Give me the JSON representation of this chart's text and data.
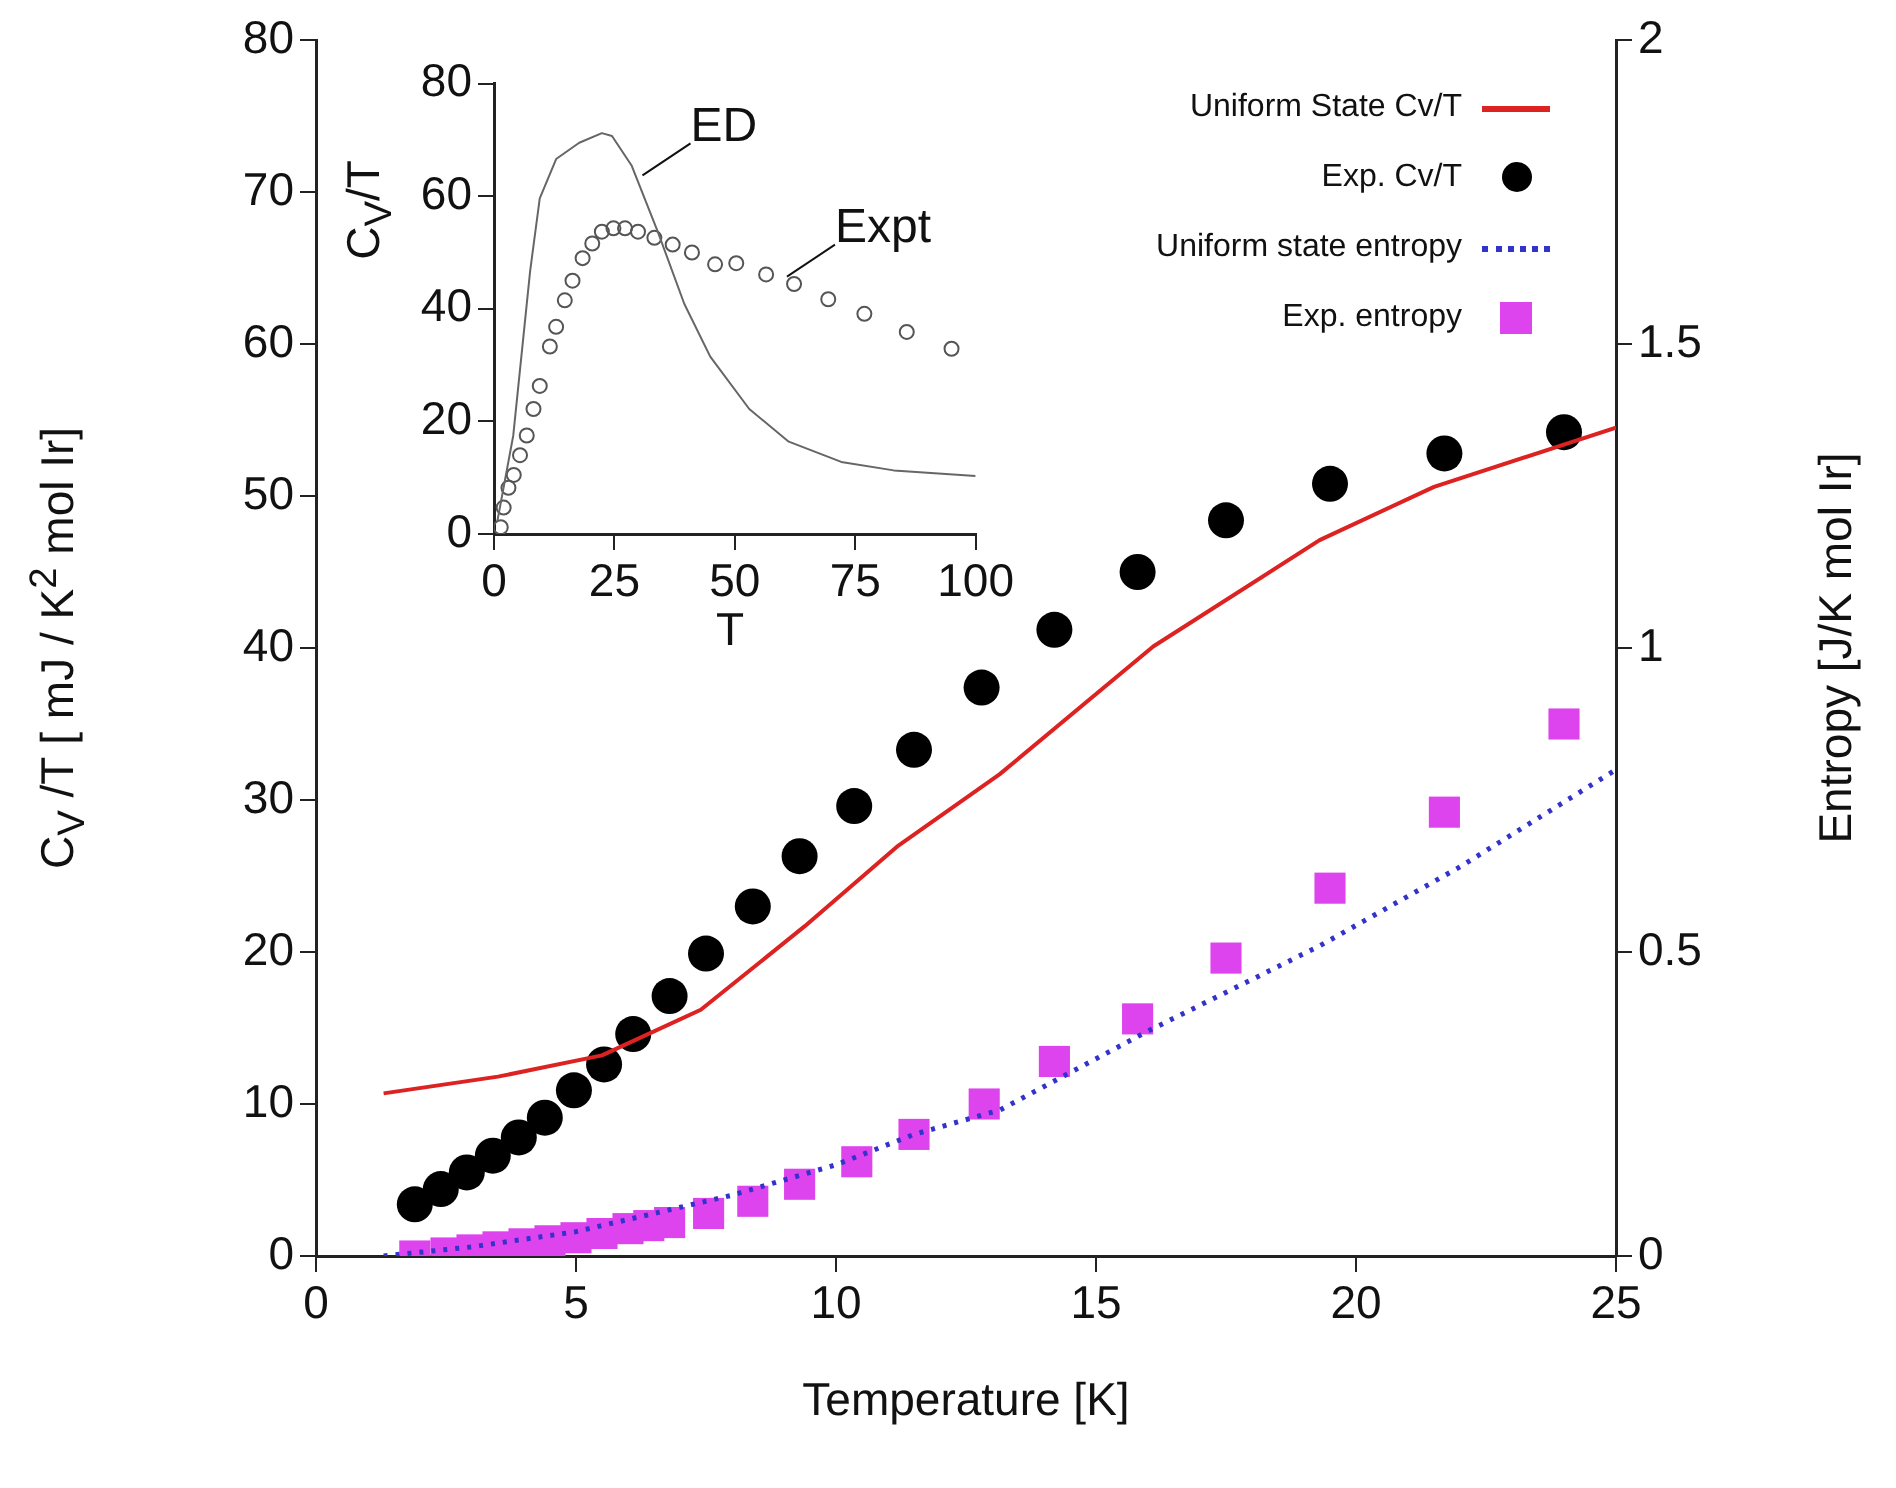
{
  "chart_data": [
    {
      "type": "line",
      "xlabel": "Temperature [K]",
      "ylabel": "C$_{V}$ /T [ mJ /  K$^{2}$ mol Ir]",
      "y2label": "Entropy [J/K mol Ir]",
      "xlim": [
        0,
        25
      ],
      "xticks": [
        0,
        5,
        10,
        15,
        20,
        25
      ],
      "ylim": [
        0,
        80
      ],
      "yticks": [
        0,
        10,
        20,
        30,
        40,
        50,
        60,
        70,
        80
      ],
      "y2lim": [
        0,
        2
      ],
      "y2ticks": [
        0,
        0.5,
        1,
        1.5,
        2
      ],
      "legend": "top right",
      "series": [
        {
          "name": "Uniform State Cv/T",
          "color": "#dd2222",
          "marker": "none",
          "line_style": "solid",
          "x": [
            1.3,
            3.5,
            5.5,
            7.4,
            9.4,
            11.2,
            13.15,
            16.1,
            19.3,
            21.5,
            25
          ],
          "values": [
            10.7,
            11.8,
            13.2,
            16.2,
            21.7,
            27,
            31.7,
            40.1,
            47.1,
            50.6,
            54.5
          ]
        },
        {
          "name": "Exp. Cv/T",
          "type": "scatter",
          "color": "#000000",
          "marker": "circle",
          "x": [
            1.9,
            2.4,
            2.9,
            3.4,
            3.9,
            4.4,
            4.96,
            5.54,
            6.1,
            6.8,
            7.5,
            8.4,
            9.3,
            10.35,
            11.5,
            12.8,
            14.2,
            15.8,
            17.5,
            19.5,
            21.7,
            24.0
          ],
          "values": [
            3.4,
            4.4,
            5.5,
            6.6,
            7.8,
            9.1,
            10.9,
            12.6,
            14.6,
            17.1,
            19.9,
            23.0,
            26.3,
            29.6,
            33.3,
            37.4,
            41.2,
            45.0,
            48.4,
            50.8,
            52.8,
            54.2
          ]
        },
        {
          "name": "Uniform state entropy",
          "axis": "y2",
          "color": "#3333cc",
          "marker": "none",
          "line_style": "dotted",
          "x": [
            1.3,
            3,
            5,
            8,
            10,
            11.5,
            13.15,
            16,
            19.3,
            22,
            25
          ],
          "values": [
            0,
            0.015,
            0.04,
            0.1,
            0.15,
            0.2,
            0.24,
            0.37,
            0.51,
            0.64,
            0.8
          ]
        },
        {
          "name": "Exp. entropy",
          "type": "scatter",
          "axis": "y2",
          "color": "#dd44ee",
          "marker": "square",
          "x": [
            1.9,
            2.5,
            3,
            3.5,
            4,
            4.5,
            5,
            5.5,
            6,
            6.4,
            6.8,
            7.55,
            8.4,
            9.3,
            10.4,
            11.5,
            12.85,
            14.2,
            15.8,
            17.5,
            19.5,
            21.7,
            24.0
          ],
          "values": [
            0,
            0.005,
            0.01,
            0.015,
            0.02,
            0.025,
            0.03,
            0.037,
            0.045,
            0.05,
            0.055,
            0.07,
            0.09,
            0.118,
            0.155,
            0.2,
            0.25,
            0.32,
            0.39,
            0.49,
            0.605,
            0.73,
            0.875
          ]
        }
      ]
    },
    {
      "type": "line",
      "xlabel": "T",
      "ylabel": "C$_{V}$/T",
      "xlim": [
        0,
        100
      ],
      "xticks": [
        0,
        25,
        50,
        75,
        100
      ],
      "ylim": [
        0,
        80
      ],
      "yticks": [
        0,
        20,
        40,
        60,
        80
      ],
      "annotations": [
        {
          "text": "ED",
          "x": 30,
          "y": 63
        },
        {
          "text": "Expt",
          "x": 60,
          "y": 45
        }
      ],
      "series": [
        {
          "color": "#666666",
          "marker": "none",
          "line_style": "solid",
          "x": [
            0.7,
            4,
            7.5,
            9.5,
            12.9,
            17.7,
            22.4,
            24.5,
            28.6,
            34,
            39.5,
            44.9,
            53,
            61.2,
            72.1,
            83,
            100
          ],
          "values": [
            2.3,
            17.5,
            46.7,
            59.6,
            66.6,
            69.5,
            71.2,
            70.7,
            65.4,
            53.7,
            40.9,
            31.5,
            22.2,
            16.4,
            12.8,
            11.3,
            10.3
          ]
        },
        {
          "type": "scatter",
          "color": "#555555",
          "marker": "circle",
          "x": [
            1.4,
            2,
            3,
            4.1,
            5.4,
            6.8,
            8.2,
            9.5,
            11.6,
            12.9,
            14.7,
            16.3,
            18.4,
            20.4,
            22.4,
            24.8,
            27.2,
            29.9,
            33.3,
            37.1,
            41.1,
            45.9,
            50.3,
            56.5,
            62.3,
            69.4,
            76.9,
            85.7,
            95
          ],
          "values": [
            1.2,
            4.7,
            8.2,
            10.5,
            14,
            17.5,
            22.2,
            26.3,
            33.3,
            36.8,
            41.5,
            45,
            49,
            51.6,
            53.7,
            54.3,
            54.3,
            53.7,
            52.6,
            51.4,
            50,
            47.9,
            48.1,
            46.1,
            44.4,
            41.7,
            39.1,
            35.9,
            32.9
          ]
        }
      ]
    }
  ]
}
